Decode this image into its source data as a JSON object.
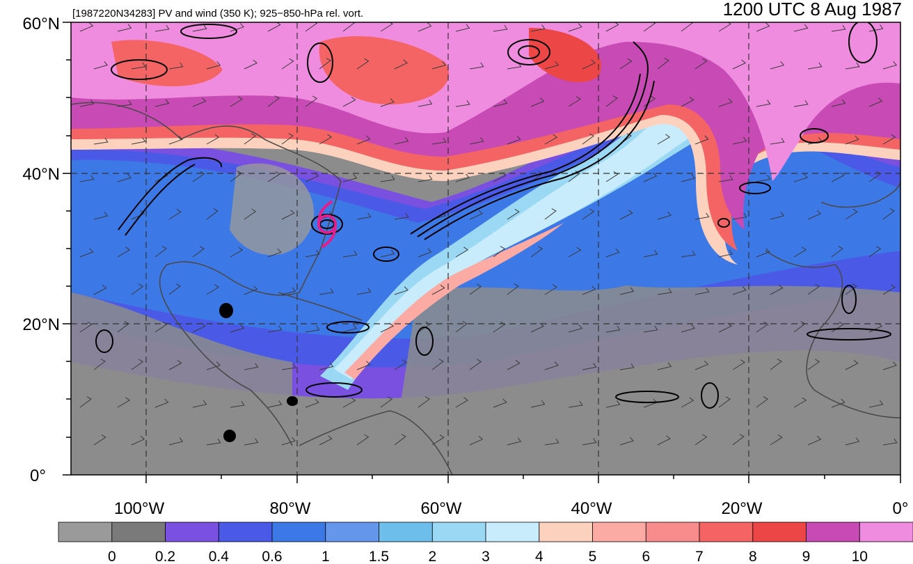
{
  "header": {
    "left_title": "[1987220N34283] PV and wind (350 K); 925−850-hPa rel. vort.",
    "right_title": "1200 UTC 8 Aug 1987"
  },
  "axes": {
    "lat_labels": [
      "60°N",
      "40°N",
      "20°N",
      "0°"
    ],
    "lon_labels": [
      "100°W",
      "80°W",
      "60°W",
      "40°W",
      "20°W",
      "0°"
    ]
  },
  "colorbar": {
    "colors": [
      "#9a9a9a",
      "#7a7a7a",
      "#7a50e0",
      "#4a5ae6",
      "#3c78e6",
      "#6496ec",
      "#6ebeec",
      "#9ad8f4",
      "#c8ecfc",
      "#fcd2be",
      "#fcaaa4",
      "#f88c8c",
      "#f46464",
      "#ec4646",
      "#c84ab4",
      "#f08ce0"
    ],
    "tick_labels": [
      "0",
      "0.2",
      "0.4",
      "0.6",
      "1",
      "1.5",
      "2",
      "3",
      "4",
      "5",
      "6",
      "7",
      "8",
      "9",
      "10"
    ]
  },
  "map": {
    "storm_marker": "hurricane-symbol",
    "storm_color": "#e0208c"
  }
}
